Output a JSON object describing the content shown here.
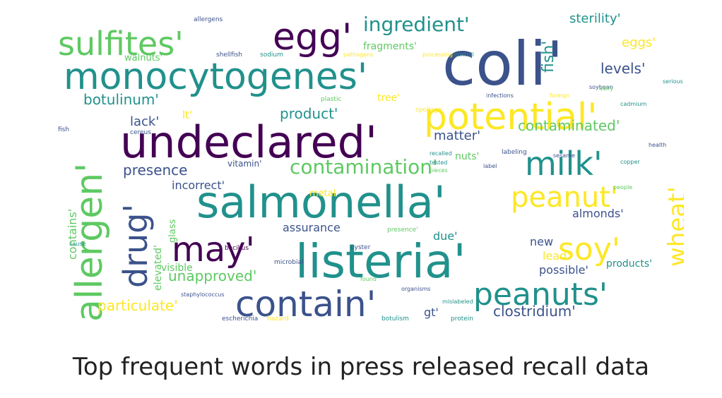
{
  "chart_data": {
    "type": "wordcloud",
    "title": "Top frequent words in press released recall data",
    "palette": [
      "#440154",
      "#3b528b",
      "#21918c",
      "#5ec962",
      "#fde725"
    ],
    "words": [
      {
        "text": "coli'",
        "rank": 1
      },
      {
        "text": "undeclared'",
        "rank": 2
      },
      {
        "text": "listeria'",
        "rank": 3
      },
      {
        "text": "salmonella'",
        "rank": 4
      },
      {
        "text": "monocytogenes'",
        "rank": 5
      },
      {
        "text": "allergen'",
        "rank": 6
      },
      {
        "text": "potential'",
        "rank": 7
      },
      {
        "text": "contain'",
        "rank": 8
      },
      {
        "text": "egg'",
        "rank": 9
      },
      {
        "text": "milk'",
        "rank": 10
      },
      {
        "text": "peanuts'",
        "rank": 11
      },
      {
        "text": "may'",
        "rank": 12
      },
      {
        "text": "drug'",
        "rank": 13
      },
      {
        "text": "sulfites'",
        "rank": 14
      },
      {
        "text": "soy'",
        "rank": 15
      },
      {
        "text": "peanut'",
        "rank": 16
      },
      {
        "text": "wheat'",
        "rank": 17
      },
      {
        "text": "contamination'",
        "rank": 18
      },
      {
        "text": "ingredient'",
        "rank": 19
      },
      {
        "text": "contaminated'",
        "rank": 20
      },
      {
        "text": "product'",
        "rank": 21
      },
      {
        "text": "botulinum'",
        "rank": 22
      },
      {
        "text": "unapproved'",
        "rank": 23
      },
      {
        "text": "particulate'",
        "rank": 24
      },
      {
        "text": "clostridium'",
        "rank": 25
      },
      {
        "text": "presence",
        "rank": 26
      },
      {
        "text": "levels'",
        "rank": 27
      },
      {
        "text": "sterility'",
        "rank": 28
      },
      {
        "text": "eggs'",
        "rank": 29
      },
      {
        "text": "matter'",
        "rank": 30
      },
      {
        "text": "lack'",
        "rank": 31
      },
      {
        "text": "fish'",
        "rank": 32
      },
      {
        "text": "incorrect'",
        "rank": 33
      },
      {
        "text": "assurance",
        "rank": 34
      },
      {
        "text": "almonds'",
        "rank": 35
      },
      {
        "text": "contains'",
        "rank": 36
      },
      {
        "text": "elevated'",
        "rank": 37
      },
      {
        "text": "possible'",
        "rank": 38
      },
      {
        "text": "fragments'",
        "rank": 39
      },
      {
        "text": "walnuts'",
        "rank": 40
      },
      {
        "text": "due'",
        "rank": 41
      },
      {
        "text": "new",
        "rank": 42
      },
      {
        "text": "lead'",
        "rank": 43
      },
      {
        "text": "products'",
        "rank": 44
      },
      {
        "text": "nuts'",
        "rank": 45
      },
      {
        "text": "tree'",
        "rank": 46
      },
      {
        "text": "visible",
        "rank": 47
      },
      {
        "text": "glass",
        "rank": 48
      },
      {
        "text": "metal",
        "rank": 49
      },
      {
        "text": "gt'",
        "rank": 50
      },
      {
        "text": "lt'",
        "rank": 51
      },
      {
        "text": "vitamin'",
        "rank": 52
      },
      {
        "text": "fish",
        "rank": 53
      },
      {
        "text": "allergens",
        "rank": 54
      },
      {
        "text": "botulism",
        "rank": 55
      },
      {
        "text": "plastic",
        "rank": 56
      },
      {
        "text": "processing",
        "rank": 57
      },
      {
        "text": "pathogens",
        "rank": 58
      },
      {
        "text": "escherichia",
        "rank": 59
      },
      {
        "text": "staphylococcus",
        "rank": 60
      },
      {
        "text": "microbial",
        "rank": 61
      },
      {
        "text": "sodium",
        "rank": 62
      },
      {
        "text": "soybean",
        "rank": 63
      },
      {
        "text": "recalled",
        "rank": 64
      },
      {
        "text": "tested",
        "rank": 65
      },
      {
        "text": "found",
        "rank": 66
      },
      {
        "text": "hazard",
        "rank": 67
      },
      {
        "text": "labeling",
        "rank": 68
      },
      {
        "text": "dairy",
        "rank": 69
      },
      {
        "text": "mislabeled",
        "rank": 70
      },
      {
        "text": "organisms",
        "rank": 71
      },
      {
        "text": "cadmium",
        "rank": 72
      },
      {
        "text": "sesame",
        "rank": 73
      },
      {
        "text": "shellfish",
        "rank": 74
      },
      {
        "text": "protein",
        "rank": 75
      },
      {
        "text": "label",
        "rank": 76
      },
      {
        "text": "copper",
        "rank": 77
      },
      {
        "text": "pieces",
        "rank": 78
      },
      {
        "text": "spoilage",
        "rank": 79
      },
      {
        "text": "oyster",
        "rank": 80
      },
      {
        "text": "control",
        "rank": 81
      },
      {
        "text": "bacillus",
        "rank": 82
      },
      {
        "text": "cereus",
        "rank": 83
      },
      {
        "text": "presence'",
        "rank": 84
      },
      {
        "text": "foreign",
        "rank": 85
      },
      {
        "text": "health",
        "rank": 86
      },
      {
        "text": "people",
        "rank": 87
      },
      {
        "text": "cause",
        "rank": 88
      },
      {
        "text": "serious",
        "rank": 89
      },
      {
        "text": "infections",
        "rank": 90
      }
    ]
  }
}
